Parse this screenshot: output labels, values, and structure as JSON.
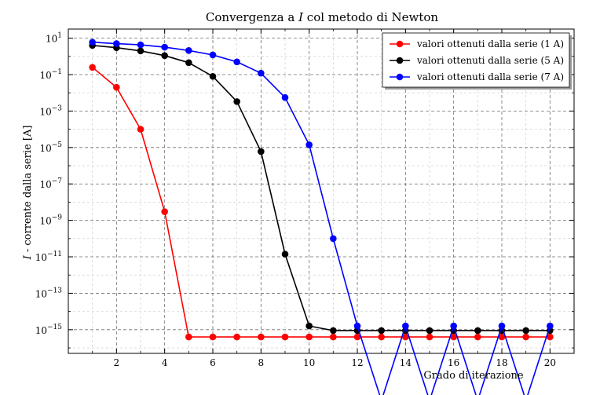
{
  "chart_data": {
    "type": "line",
    "title": "Convergenza a I col metodo di Newton",
    "title_prefix": "Convergenza a",
    "title_var": "I",
    "title_suffix": "col metodo di Newton",
    "xlabel": "Grado di iterazione",
    "ylabel_var": "I",
    "ylabel_suffix": "- corrente dalla serie [A]",
    "yscale": "log",
    "xlim": [
      0,
      21
    ],
    "ylim_exp": [
      -16.3,
      1.5
    ],
    "x_ticks": [
      2,
      4,
      6,
      8,
      10,
      12,
      14,
      16,
      18,
      20
    ],
    "x_tick_labels": [
      "2",
      "4",
      "6",
      "8",
      "10",
      "12",
      "14",
      "16",
      "18",
      "20"
    ],
    "y_tick_exponents": [
      1,
      -1,
      -3,
      -5,
      -7,
      -9,
      -11,
      -13,
      -15
    ],
    "y_tick_labels": [
      "1",
      "−1",
      "−3",
      "−5",
      "−7",
      "−9",
      "−11",
      "−13",
      "−15"
    ],
    "y_tick_base": "10",
    "grid": true,
    "legend_position": "top-right",
    "series": [
      {
        "name": "valori ottenuti dalla serie (1 A)",
        "color": "#ff0000",
        "x": [
          1,
          2,
          3,
          4,
          5,
          6,
          7,
          8,
          9,
          10,
          11,
          12,
          13,
          14,
          15,
          16,
          17,
          18,
          19,
          20
        ],
        "y": [
          0.25,
          0.02,
          0.0001,
          3e-09,
          4e-16,
          4e-16,
          4e-16,
          4e-16,
          4e-16,
          4e-16,
          4e-16,
          4e-16,
          4e-16,
          4e-16,
          4e-16,
          4e-16,
          4e-16,
          4e-16,
          4e-16,
          4e-16
        ]
      },
      {
        "name": "valori ottenuti dalla serie (5 A)",
        "color": "#000000",
        "x": [
          1,
          2,
          3,
          4,
          5,
          6,
          7,
          8,
          9,
          10,
          11,
          12,
          13,
          14,
          15,
          16,
          17,
          18,
          19,
          20
        ],
        "y": [
          4,
          3,
          2,
          1.1,
          0.45,
          0.08,
          0.0033,
          6e-06,
          1.4e-11,
          1.6e-15,
          9e-16,
          9e-16,
          9e-16,
          9e-16,
          9e-16,
          9e-16,
          9e-16,
          9e-16,
          9e-16,
          9e-16
        ]
      },
      {
        "name": "valori ottenuti dalla serie (7 A)",
        "color": "#0000ff",
        "x": [
          1,
          2,
          3,
          4,
          5,
          6,
          7,
          8,
          9,
          10,
          11,
          12,
          13,
          14,
          15,
          16,
          17,
          18,
          19,
          20
        ],
        "y": [
          6,
          5,
          4.3,
          3.2,
          2.1,
          1.2,
          0.5,
          0.12,
          0.0055,
          1.4e-05,
          1e-10,
          1.6e-15,
          0,
          1.6e-15,
          0,
          1.6e-15,
          0,
          1.6e-15,
          0,
          1.6e-15
        ]
      }
    ]
  }
}
